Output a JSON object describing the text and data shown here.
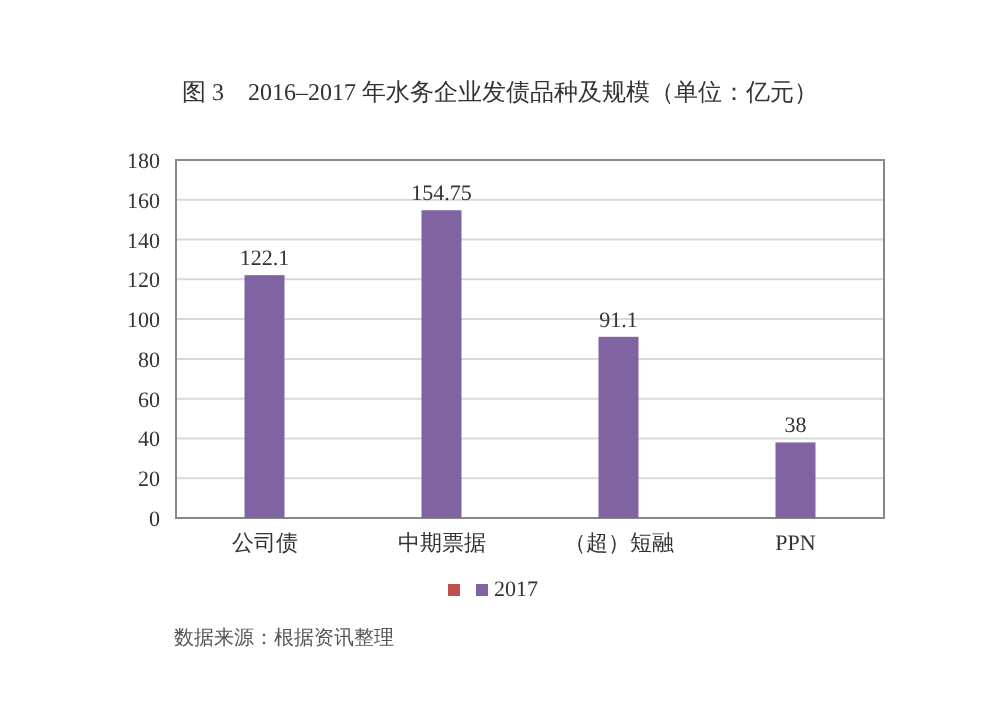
{
  "chart_data": {
    "type": "bar",
    "title": "图 3　2016–2017 年水务企业发债品种及规模（单位：亿元）",
    "categories": [
      "公司债",
      "中期票据",
      "（超）短融",
      "PPN"
    ],
    "series": [
      {
        "color": "#c0504d",
        "values": [
          null,
          null,
          null,
          null
        ]
      },
      {
        "name": "2017",
        "color": "#8064a2",
        "values": [
          122.1,
          154.75,
          91.1,
          38
        ]
      }
    ],
    "ylim": [
      0,
      180
    ],
    "yticks": [
      0,
      20,
      40,
      60,
      80,
      100,
      120,
      140,
      160,
      180
    ],
    "grid": "y",
    "legend": "bottom",
    "data_labels": true,
    "annotations": [
      "数据来源：根据资讯整理"
    ]
  }
}
